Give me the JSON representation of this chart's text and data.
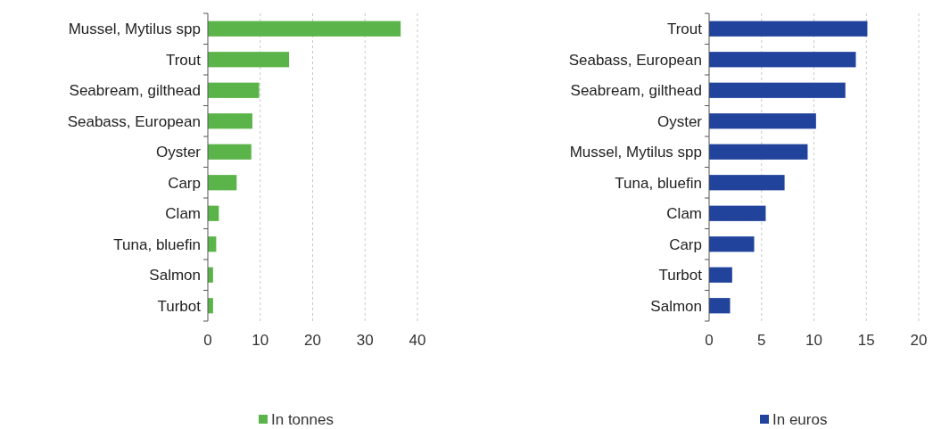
{
  "chart_data": [
    {
      "type": "bar",
      "orientation": "horizontal",
      "categories": [
        "Mussel, Mytilus spp",
        "Trout",
        "Seabream, gilthead",
        "Seabass, European",
        "Oyster",
        "Carp",
        "Clam",
        "Tuna, bluefin",
        "Salmon",
        "Turbot"
      ],
      "series": [
        {
          "name": "In tonnes",
          "color": "#5bb449",
          "values": [
            36.8,
            15.5,
            9.8,
            8.5,
            8.3,
            5.5,
            2.1,
            1.6,
            1.0,
            1.0
          ]
        }
      ],
      "xlim": [
        0,
        40
      ],
      "xticks": [
        0,
        10,
        20,
        30,
        40
      ],
      "grid": "x",
      "legend": "bottom"
    },
    {
      "type": "bar",
      "orientation": "horizontal",
      "categories": [
        "Trout",
        "Seabass, European",
        "Seabream, gilthead",
        "Oyster",
        "Mussel, Mytilus spp",
        "Tuna, bluefin",
        "Clam",
        "Carp",
        "Turbot",
        "Salmon"
      ],
      "series": [
        {
          "name": "In euros",
          "color": "#21439c",
          "values": [
            15.1,
            14.0,
            13.0,
            10.2,
            9.4,
            7.2,
            5.4,
            4.3,
            2.2,
            2.0
          ]
        }
      ],
      "xlim": [
        0,
        20
      ],
      "xticks": [
        0,
        5,
        10,
        15,
        20
      ],
      "grid": "x",
      "legend": "bottom"
    }
  ]
}
